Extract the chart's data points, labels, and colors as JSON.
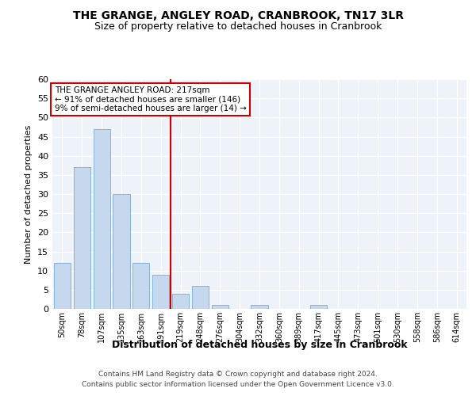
{
  "title": "THE GRANGE, ANGLEY ROAD, CRANBROOK, TN17 3LR",
  "subtitle": "Size of property relative to detached houses in Cranbrook",
  "xlabel": "Distribution of detached houses by size in Cranbrook",
  "ylabel": "Number of detached properties",
  "bar_labels": [
    "50sqm",
    "78sqm",
    "107sqm",
    "135sqm",
    "163sqm",
    "191sqm",
    "219sqm",
    "248sqm",
    "276sqm",
    "304sqm",
    "332sqm",
    "360sqm",
    "389sqm",
    "417sqm",
    "445sqm",
    "473sqm",
    "501sqm",
    "530sqm",
    "558sqm",
    "586sqm",
    "614sqm"
  ],
  "bar_values": [
    12,
    37,
    47,
    30,
    12,
    9,
    4,
    6,
    1,
    0,
    1,
    0,
    0,
    1,
    0,
    0,
    0,
    0,
    0,
    0,
    0
  ],
  "bar_color": "#c5d8ed",
  "bar_edge_color": "#7aadd4",
  "vline_index": 6,
  "vline_color": "#cc0000",
  "ylim": [
    0,
    60
  ],
  "yticks": [
    0,
    5,
    10,
    15,
    20,
    25,
    30,
    35,
    40,
    45,
    50,
    55,
    60
  ],
  "annotation_line1": "THE GRANGE ANGLEY ROAD: 217sqm",
  "annotation_line2": "← 91% of detached houses are smaller (146)",
  "annotation_line3": "9% of semi-detached houses are larger (14) →",
  "annotation_box_color": "#cc0000",
  "background_color": "#eef2f9",
  "grid_color": "#ffffff",
  "title_fontsize": 10,
  "subtitle_fontsize": 9,
  "ylabel_fontsize": 8,
  "xlabel_fontsize": 9,
  "footer_line1": "Contains HM Land Registry data © Crown copyright and database right 2024.",
  "footer_line2": "Contains public sector information licensed under the Open Government Licence v3.0."
}
